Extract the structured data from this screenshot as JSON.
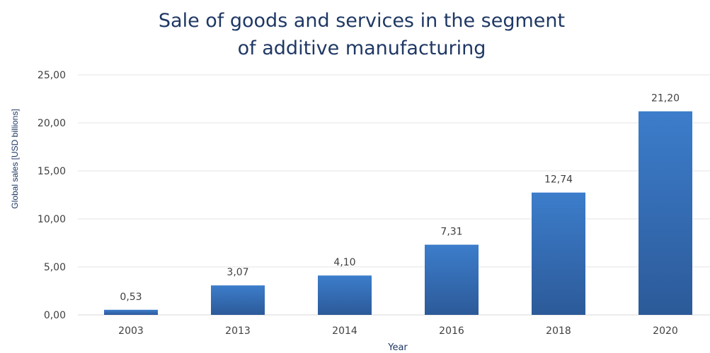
{
  "chart_data": {
    "type": "bar",
    "title_lines": [
      "Sale of goods and services in the segment",
      "of additive manufacturing"
    ],
    "xlabel": "Year",
    "ylabel": "Global sales [USD billions]",
    "categories": [
      "2003",
      "2013",
      "2014",
      "2016",
      "2018",
      "2020"
    ],
    "values": [
      0.53,
      3.07,
      4.1,
      7.31,
      12.74,
      21.2
    ],
    "data_labels": [
      "0,53",
      "3,07",
      "4,10",
      "7,31",
      "12,74",
      "21,20"
    ],
    "ylim": [
      0,
      25
    ],
    "yticks": [
      0,
      5,
      10,
      15,
      20,
      25
    ],
    "ytick_labels": [
      "0,00",
      "5,00",
      "10,00",
      "15,00",
      "20,00",
      "25,00"
    ],
    "grid": true,
    "legend": "none",
    "bar_color_top": "#3C7DCB",
    "bar_color_bottom": "#2C5A99",
    "title_color": "#1F3864"
  }
}
